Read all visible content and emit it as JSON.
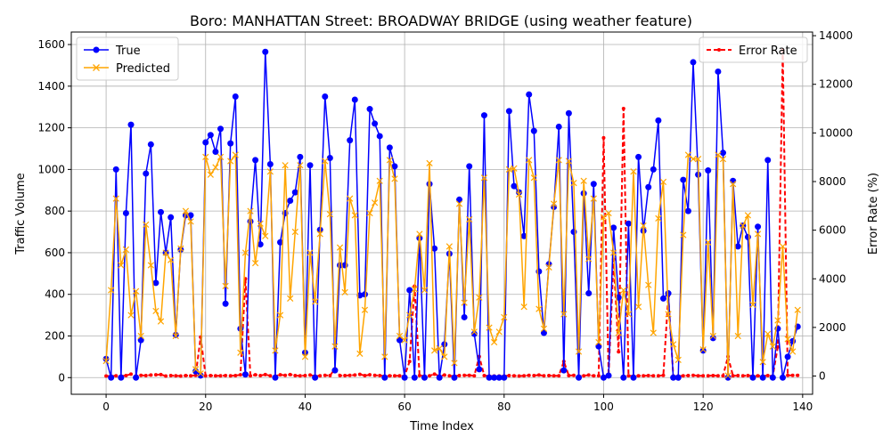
{
  "chart_data": {
    "type": "line",
    "title": "Boro: MANHATTAN Street: BROADWAY BRIDGE (using weather feature)",
    "xlabel": "Time Index",
    "ylabel": "Traffic Volume",
    "y2label": "Error Rate (%)",
    "xlim": [
      -7,
      142
    ],
    "ylim": [
      -80,
      1660
    ],
    "y2lim": [
      -750,
      14150
    ],
    "xticks": [
      0,
      20,
      40,
      60,
      80,
      100,
      120,
      140
    ],
    "yticks": [
      0,
      200,
      400,
      600,
      800,
      1000,
      1200,
      1400,
      1600
    ],
    "y2ticks": [
      0,
      2000,
      4000,
      6000,
      8000,
      10000,
      12000,
      14000
    ],
    "grid": true,
    "legend_left": "upper-left",
    "legend_right": "upper-right",
    "x": [
      0,
      1,
      2,
      3,
      4,
      5,
      6,
      7,
      8,
      9,
      10,
      11,
      12,
      13,
      14,
      15,
      16,
      17,
      18,
      19,
      20,
      21,
      22,
      23,
      24,
      25,
      26,
      27,
      28,
      29,
      30,
      31,
      32,
      33,
      34,
      35,
      36,
      37,
      38,
      39,
      40,
      41,
      42,
      43,
      44,
      45,
      46,
      47,
      48,
      49,
      50,
      51,
      52,
      53,
      54,
      55,
      56,
      57,
      58,
      59,
      60,
      61,
      62,
      63,
      64,
      65,
      66,
      67,
      68,
      69,
      70,
      71,
      72,
      73,
      74,
      75,
      76,
      77,
      78,
      79,
      80,
      81,
      82,
      83,
      84,
      85,
      86,
      87,
      88,
      89,
      90,
      91,
      92,
      93,
      94,
      95,
      96,
      97,
      98,
      99,
      100,
      101,
      102,
      103,
      104,
      105,
      106,
      107,
      108,
      109,
      110,
      111,
      112,
      113,
      114,
      115,
      116,
      117,
      118,
      119,
      120,
      121,
      122,
      123,
      124,
      125,
      126,
      127,
      128,
      129,
      130,
      131,
      132,
      133,
      134,
      135,
      136,
      137,
      138,
      139
    ],
    "series": [
      {
        "name": "True",
        "axis": "left",
        "color": "#0000ff",
        "style": "solid",
        "marker": "o",
        "values": [
          90,
          0,
          1000,
          0,
          790,
          1215,
          0,
          180,
          980,
          1120,
          455,
          795,
          600,
          770,
          205,
          615,
          780,
          780,
          30,
          10,
          1130,
          1165,
          1085,
          1195,
          355,
          1125,
          1350,
          235,
          15,
          750,
          1045,
          640,
          1565,
          1025,
          0,
          650,
          790,
          850,
          890,
          1060,
          120,
          1020,
          0,
          710,
          1350,
          1055,
          35,
          540,
          540,
          1140,
          1335,
          395,
          400,
          1290,
          1220,
          1160,
          0,
          1105,
          1015,
          180,
          0,
          420,
          0,
          670,
          0,
          930,
          620,
          0,
          160,
          595,
          0,
          855,
          290,
          1015,
          210,
          40,
          1260,
          0,
          0,
          0,
          0,
          1280,
          920,
          890,
          680,
          1360,
          1185,
          510,
          215,
          545,
          820,
          1205,
          35,
          1270,
          700,
          0,
          885,
          405,
          930,
          150,
          0,
          10,
          720,
          385,
          0,
          740,
          0,
          1060,
          705,
          915,
          1000,
          1235,
          380,
          405,
          0,
          0,
          950,
          800,
          1515,
          975,
          130,
          995,
          190,
          1470,
          1080,
          0,
          945,
          630,
          730,
          675,
          0,
          725,
          0,
          1045,
          0,
          235,
          0,
          100,
          175,
          245
        ]
      },
      {
        "name": "Predicted",
        "axis": "left",
        "color": "#ffa500",
        "style": "solid",
        "marker": "x",
        "values": [
          80,
          420,
          860,
          540,
          615,
          300,
          415,
          200,
          735,
          540,
          320,
          270,
          600,
          565,
          200,
          620,
          800,
          750,
          40,
          20,
          1060,
          975,
          1010,
          1060,
          440,
          1040,
          1070,
          120,
          600,
          800,
          550,
          740,
          680,
          990,
          130,
          300,
          1020,
          380,
          700,
          1020,
          100,
          600,
          365,
          690,
          1040,
          785,
          150,
          625,
          410,
          860,
          780,
          115,
          325,
          790,
          840,
          945,
          100,
          1045,
          955,
          200,
          180,
          300,
          425,
          690,
          420,
          1030,
          130,
          140,
          100,
          630,
          70,
          835,
          360,
          760,
          220,
          385,
          960,
          240,
          170,
          220,
          290,
          1000,
          1005,
          880,
          340,
          1045,
          960,
          330,
          235,
          530,
          835,
          1045,
          305,
          1040,
          935,
          125,
          945,
          570,
          860,
          170,
          770,
          790,
          600,
          215,
          420,
          305,
          990,
          340,
          730,
          445,
          215,
          765,
          940,
          305,
          160,
          85,
          685,
          1070,
          1050,
          1050,
          135,
          650,
          200,
          1070,
          1050,
          10,
          930,
          200,
          730,
          780,
          350,
          690,
          75,
          210,
          150,
          275,
          630,
          185,
          125,
          325
        ]
      },
      {
        "name": "Error Rate",
        "axis": "right",
        "color": "#ff0000",
        "style": "dashed",
        "marker": ".",
        "values": [
          0,
          0,
          10,
          0,
          20,
          80,
          0,
          30,
          20,
          40,
          50,
          60,
          0,
          20,
          10,
          0,
          20,
          10,
          30,
          1600,
          10,
          20,
          10,
          10,
          20,
          10,
          20,
          50,
          4000,
          10,
          50,
          20,
          60,
          10,
          0,
          50,
          30,
          60,
          20,
          10,
          20,
          40,
          0,
          10,
          30,
          20,
          300,
          20,
          20,
          30,
          40,
          70,
          20,
          50,
          30,
          20,
          0,
          10,
          10,
          10,
          0,
          600,
          3700,
          20,
          0,
          10,
          80,
          0,
          40,
          10,
          0,
          20,
          30,
          30,
          10,
          800,
          20,
          0,
          0,
          0,
          0,
          20,
          10,
          0,
          10,
          30,
          20,
          40,
          10,
          20,
          10,
          10,
          600,
          20,
          30,
          0,
          10,
          40,
          10,
          10,
          9800,
          20,
          4800,
          1000,
          11000,
          10,
          0,
          10,
          10,
          20,
          10,
          10,
          30,
          3300,
          0,
          0,
          10,
          20,
          30,
          10,
          10,
          10,
          20,
          10,
          10,
          800,
          10,
          20,
          10,
          20,
          0,
          10,
          0,
          20,
          0,
          1200,
          13400,
          30,
          30,
          30
        ]
      }
    ]
  }
}
